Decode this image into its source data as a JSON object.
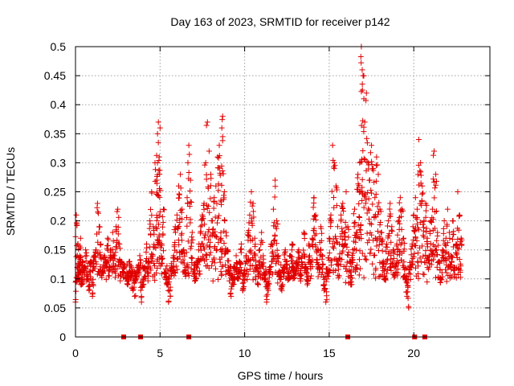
{
  "chart_data": {
    "type": "scatter",
    "title": "Day 163 of 2023, SRMTID for receiver p142",
    "xlabel": "GPS time / hours",
    "ylabel": "SRMTID / TECUs",
    "xlim": [
      0,
      24.5
    ],
    "ylim": [
      0,
      0.5
    ],
    "x_ticks": [
      0,
      5,
      10,
      15,
      20
    ],
    "x_tick_labels": [
      "0",
      "5",
      "10",
      "15",
      "20"
    ],
    "y_ticks": [
      0,
      0.05,
      0.1,
      0.15,
      0.2,
      0.25,
      0.3,
      0.35,
      0.4,
      0.45,
      0.5
    ],
    "y_tick_labels": [
      "0",
      "0.05",
      "0.1",
      "0.15",
      "0.2",
      "0.25",
      "0.3",
      "0.35",
      "0.4",
      "0.45",
      "0.5"
    ],
    "grid": true,
    "marker": "+",
    "color": "#e00000",
    "series": [
      {
        "name": "SRMTID",
        "x": [
          0.0,
          0.05,
          0.1,
          0.15,
          0.2,
          0.25,
          0.3,
          0.35,
          0.4,
          0.5,
          0.6,
          0.7,
          0.8,
          0.9,
          1.0,
          1.1,
          1.2,
          1.3,
          1.4,
          1.5,
          1.6,
          1.7,
          1.8,
          1.9,
          2.0,
          2.1,
          2.2,
          2.3,
          2.4,
          2.5,
          2.6,
          2.7,
          2.8,
          2.9,
          3.0,
          3.1,
          3.2,
          3.3,
          3.4,
          3.5,
          3.6,
          3.7,
          3.8,
          3.9,
          4.0,
          4.1,
          4.2,
          4.3,
          4.4,
          4.5,
          4.6,
          4.7,
          4.8,
          4.85,
          4.9,
          4.95,
          5.0,
          5.1,
          5.2,
          5.3,
          5.4,
          5.5,
          5.6,
          5.7,
          5.8,
          5.9,
          6.0,
          6.1,
          6.2,
          6.3,
          6.4,
          6.5,
          6.6,
          6.7,
          6.8,
          6.9,
          7.0,
          7.1,
          7.2,
          7.3,
          7.4,
          7.5,
          7.6,
          7.7,
          7.8,
          7.9,
          8.0,
          8.1,
          8.2,
          8.3,
          8.4,
          8.5,
          8.6,
          8.65,
          8.7,
          8.8,
          8.9,
          9.0,
          9.1,
          9.2,
          9.3,
          9.4,
          9.5,
          9.6,
          9.7,
          9.8,
          9.9,
          10.0,
          10.1,
          10.2,
          10.3,
          10.4,
          10.5,
          10.6,
          10.7,
          10.8,
          10.9,
          11.0,
          11.1,
          11.2,
          11.3,
          11.4,
          11.5,
          11.6,
          11.7,
          11.8,
          11.9,
          12.0,
          12.1,
          12.2,
          12.3,
          12.4,
          12.5,
          12.6,
          12.7,
          12.8,
          12.9,
          13.0,
          13.1,
          13.2,
          13.3,
          13.4,
          13.5,
          13.6,
          13.7,
          13.8,
          13.9,
          14.0,
          14.1,
          14.2,
          14.3,
          14.4,
          14.5,
          14.6,
          14.7,
          14.8,
          14.9,
          15.0,
          15.1,
          15.2,
          15.3,
          15.4,
          15.5,
          15.6,
          15.7,
          15.8,
          15.9,
          16.0,
          16.1,
          16.2,
          16.3,
          16.4,
          16.5,
          16.6,
          16.7,
          16.8,
          16.85,
          16.9,
          16.95,
          17.0,
          17.1,
          17.2,
          17.3,
          17.4,
          17.5,
          17.6,
          17.7,
          17.8,
          17.9,
          18.0,
          18.1,
          18.2,
          18.3,
          18.4,
          18.5,
          18.6,
          18.7,
          18.8,
          18.9,
          19.0,
          19.1,
          19.2,
          19.3,
          19.4,
          19.5,
          19.6,
          19.7,
          19.8,
          19.9,
          20.0,
          20.1,
          20.2,
          20.3,
          20.4,
          20.5,
          20.6,
          20.7,
          20.8,
          20.9,
          21.0,
          21.1,
          21.2,
          21.3,
          21.4,
          21.5,
          21.6,
          21.7,
          21.8,
          21.9,
          22.0,
          22.1,
          22.2,
          22.3,
          22.4,
          22.5,
          22.6,
          22.7,
          22.8
        ],
        "y": [
          0.06,
          0.21,
          0.12,
          0.16,
          0.11,
          0.14,
          0.17,
          0.09,
          0.13,
          0.12,
          0.15,
          0.1,
          0.08,
          0.13,
          0.07,
          0.14,
          0.15,
          0.23,
          0.19,
          0.16,
          0.11,
          0.14,
          0.13,
          0.17,
          0.12,
          0.15,
          0.18,
          0.14,
          0.19,
          0.22,
          0.16,
          0.13,
          0.11,
          0.12,
          0.1,
          0.09,
          0.13,
          0.12,
          0.08,
          0.07,
          0.1,
          0.12,
          0.14,
          0.06,
          0.09,
          0.12,
          0.16,
          0.13,
          0.2,
          0.25,
          0.19,
          0.3,
          0.27,
          0.35,
          0.37,
          0.31,
          0.36,
          0.16,
          0.22,
          0.11,
          0.09,
          0.06,
          0.07,
          0.12,
          0.14,
          0.19,
          0.21,
          0.26,
          0.28,
          0.22,
          0.15,
          0.11,
          0.24,
          0.33,
          0.27,
          0.18,
          0.11,
          0.1,
          0.13,
          0.16,
          0.19,
          0.21,
          0.23,
          0.3,
          0.37,
          0.32,
          0.28,
          0.2,
          0.24,
          0.26,
          0.31,
          0.33,
          0.17,
          0.36,
          0.38,
          0.25,
          0.18,
          0.15,
          0.11,
          0.07,
          0.09,
          0.12,
          0.14,
          0.1,
          0.13,
          0.16,
          0.08,
          0.11,
          0.14,
          0.18,
          0.21,
          0.25,
          0.23,
          0.17,
          0.12,
          0.09,
          0.15,
          0.18,
          0.14,
          0.1,
          0.06,
          0.08,
          0.12,
          0.16,
          0.22,
          0.27,
          0.2,
          0.14,
          0.11,
          0.08,
          0.12,
          0.15,
          0.13,
          0.1,
          0.14,
          0.16,
          0.12,
          0.11,
          0.13,
          0.15,
          0.1,
          0.14,
          0.18,
          0.12,
          0.09,
          0.16,
          0.13,
          0.17,
          0.24,
          0.21,
          0.15,
          0.12,
          0.19,
          0.14,
          0.08,
          0.06,
          0.11,
          0.17,
          0.21,
          0.33,
          0.3,
          0.26,
          0.19,
          0.16,
          0.21,
          0.23,
          0.18,
          0.25,
          0.19,
          0.13,
          0.09,
          0.15,
          0.22,
          0.18,
          0.28,
          0.3,
          0.25,
          0.5,
          0.46,
          0.45,
          0.37,
          0.42,
          0.3,
          0.27,
          0.33,
          0.29,
          0.24,
          0.31,
          0.28,
          0.22,
          0.18,
          0.13,
          0.1,
          0.16,
          0.2,
          0.23,
          0.19,
          0.15,
          0.11,
          0.16,
          0.2,
          0.24,
          0.22,
          0.17,
          0.1,
          0.07,
          0.05,
          0.12,
          0.16,
          0.21,
          0.24,
          0.22,
          0.34,
          0.3,
          0.26,
          0.2,
          0.23,
          0.17,
          0.14,
          0.2,
          0.22,
          0.32,
          0.28,
          0.18,
          0.13,
          0.1,
          0.15,
          0.2,
          0.17,
          0.22,
          0.18,
          0.14,
          0.2,
          0.12,
          0.16,
          0.25,
          0.21,
          0.17
        ]
      }
    ],
    "zero_markers_x": [
      2.85,
      3.85,
      6.7,
      16.1,
      20.05,
      20.65
    ]
  }
}
